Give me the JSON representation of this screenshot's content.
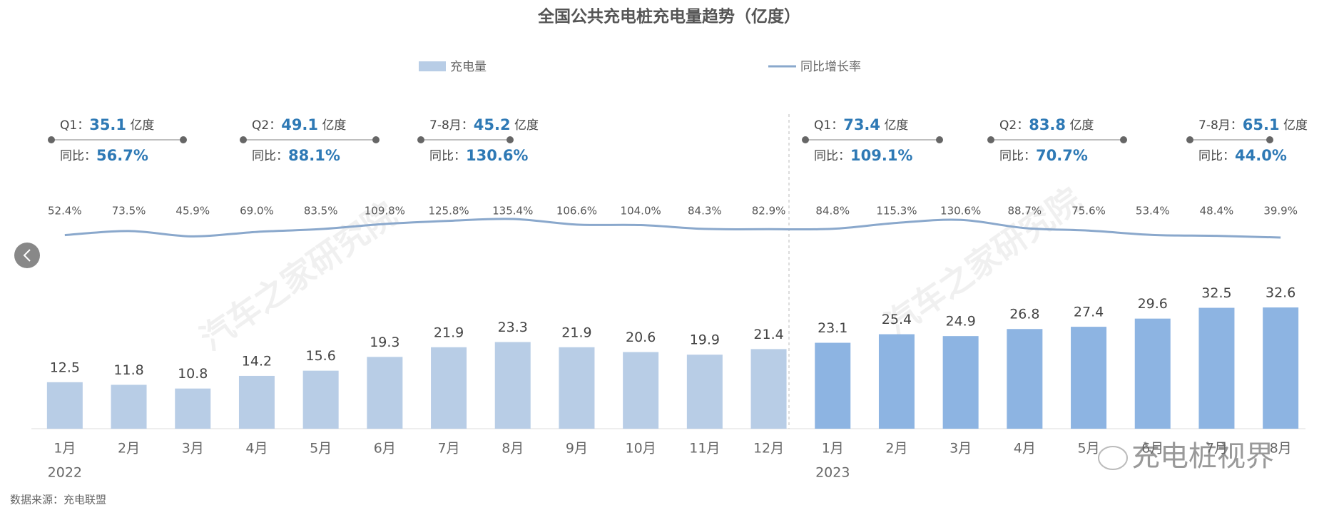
{
  "chart_data": {
    "type": "bar+line",
    "title": "全国公共充电桩充电量趋势（亿度）",
    "categories": [
      "1月",
      "2月",
      "3月",
      "4月",
      "5月",
      "6月",
      "7月",
      "8月",
      "9月",
      "10月",
      "11月",
      "12月",
      "1月",
      "2月",
      "3月",
      "4月",
      "5月",
      "6月",
      "7月",
      "8月"
    ],
    "categories_level2": [
      "2022",
      null,
      null,
      null,
      null,
      null,
      null,
      null,
      null,
      null,
      null,
      null,
      "2023",
      null,
      null,
      null,
      null,
      null,
      null,
      null
    ],
    "series": [
      {
        "name": "充电量",
        "type": "bar",
        "color": "#b8cde6",
        "values": [
          12.5,
          11.8,
          10.8,
          14.2,
          15.6,
          19.3,
          21.9,
          23.3,
          21.9,
          20.6,
          19.9,
          21.4,
          23.1,
          25.4,
          24.9,
          26.8,
          27.4,
          29.6,
          32.5,
          32.6
        ],
        "colors": [
          "#b8cde6",
          "#b8cde6",
          "#b8cde6",
          "#b8cde6",
          "#b8cde6",
          "#b8cde6",
          "#b8cde6",
          "#b8cde6",
          "#b8cde6",
          "#b8cde6",
          "#b8cde6",
          "#b8cde6",
          "#8db4e2",
          "#8db4e2",
          "#8db4e2",
          "#8db4e2",
          "#8db4e2",
          "#8db4e2",
          "#8db4e2",
          "#8db4e2"
        ]
      },
      {
        "name": "同比增长率",
        "type": "line",
        "color": "#8aa8cc",
        "values": [
          52.4,
          73.5,
          45.9,
          69.0,
          83.5,
          109.8,
          125.8,
          135.4,
          106.6,
          104.0,
          84.3,
          82.9,
          84.8,
          115.3,
          130.6,
          88.7,
          75.6,
          53.4,
          48.4,
          39.9
        ],
        "value_labels": [
          "52.4%",
          "73.5%",
          "45.9%",
          "69.0%",
          "83.5%",
          "109.8%",
          "125.8%",
          "135.4%",
          "106.6%",
          "104.0%",
          "84.3%",
          "82.9%",
          "84.8%",
          "115.3%",
          "130.6%",
          "88.7%",
          "75.6%",
          "53.4%",
          "48.4%",
          "39.9%"
        ]
      }
    ],
    "annotations": [
      {
        "period": "Q1：",
        "value": 35.1,
        "unit": "亿度",
        "yoy_label": "同比：",
        "yoy": "56.7%"
      },
      {
        "period": "Q2：",
        "value": 49.1,
        "unit": "亿度",
        "yoy_label": "同比：",
        "yoy": "88.1%"
      },
      {
        "period": "7-8月：",
        "value": 45.2,
        "unit": "亿度",
        "yoy_label": "同比：",
        "yoy": "130.6%"
      },
      {
        "period": "Q1：",
        "value": 73.4,
        "unit": "亿度",
        "yoy_label": "同比：",
        "yoy": "109.1%"
      },
      {
        "period": "Q2：",
        "value": 83.8,
        "unit": "亿度",
        "yoy_label": "同比：",
        "yoy": "70.7%"
      },
      {
        "period": "7-8月：",
        "value": 65.1,
        "unit": "亿度",
        "yoy_label": "同比：",
        "yoy": "44.0%"
      }
    ],
    "source": "数据来源：充电联盟",
    "watermark": "汽车之家研究院",
    "logo": "充电桩视界"
  }
}
